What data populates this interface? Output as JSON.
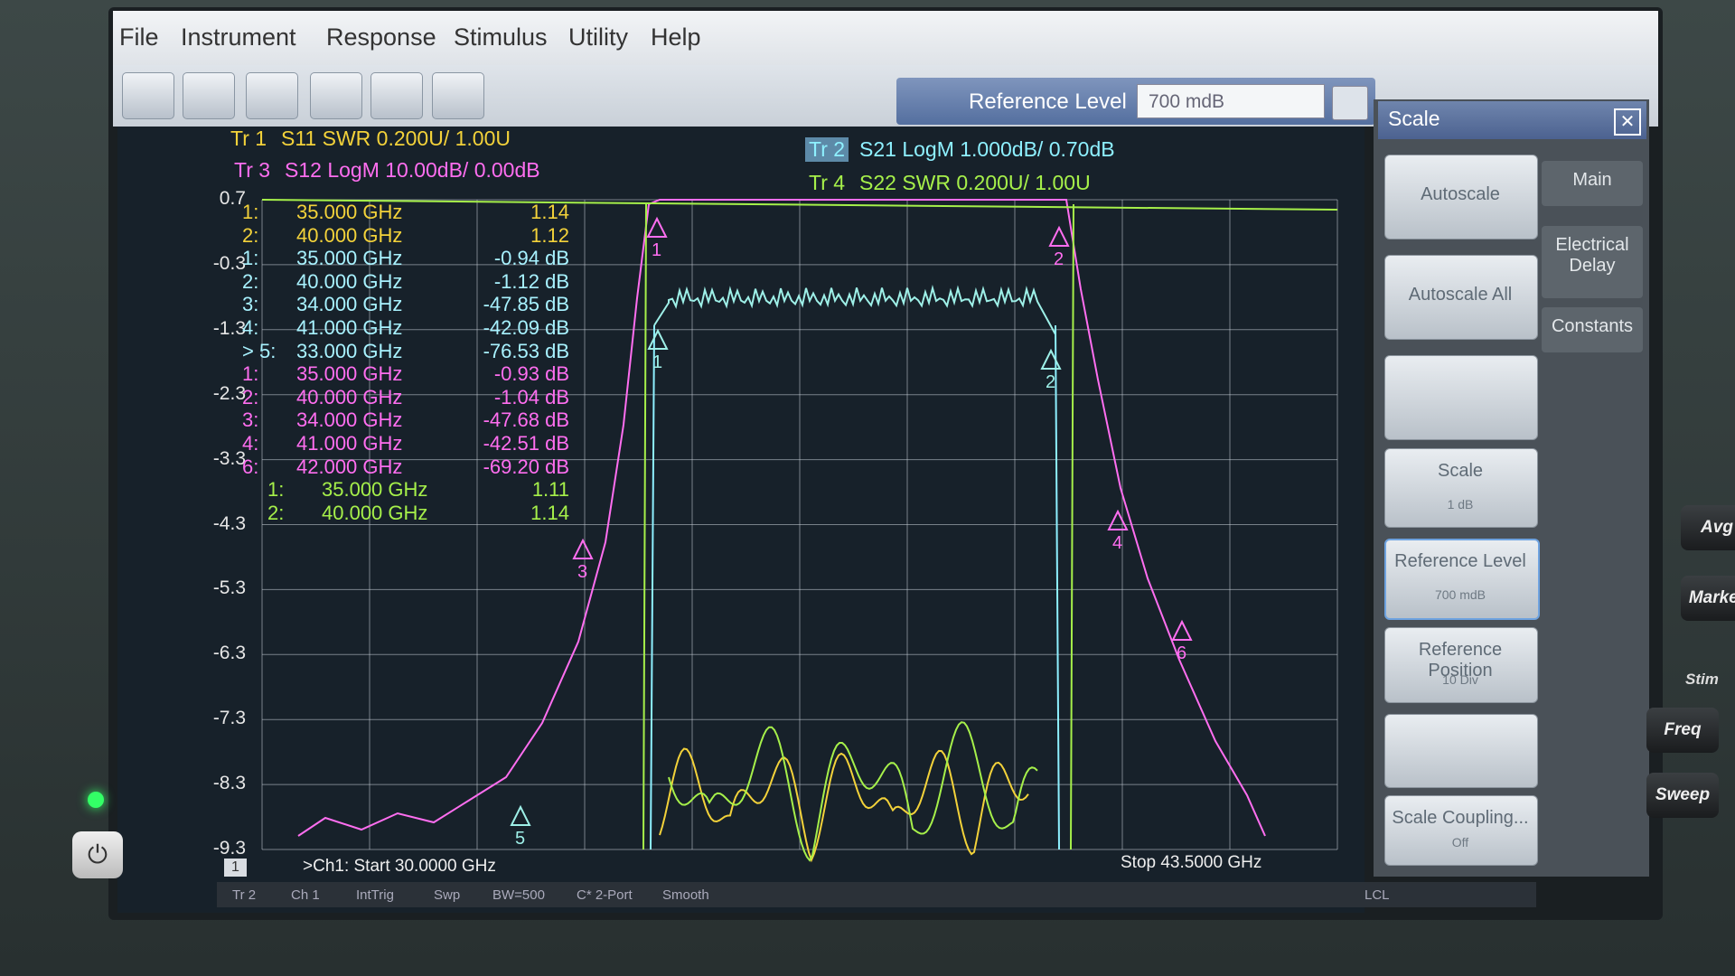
{
  "menu": [
    "File",
    "Instrument",
    "Response",
    "Stimulus",
    "Utility",
    "Help"
  ],
  "entry": {
    "label": "Reference Level",
    "value": "700 mdB"
  },
  "traces": [
    {
      "id": "Tr 1",
      "desc": "S11 SWR 0.200U/ 1.00U",
      "color": "#f3d23a"
    },
    {
      "id": "Tr 3",
      "desc": "S12 LogM 10.00dB/ 0.00dB",
      "color": "#ff6ef0"
    },
    {
      "id": "Tr 2",
      "desc": "S21 LogM 1.000dB/ 0.70dB",
      "color": "#8ef0ff"
    },
    {
      "id": "Tr 4",
      "desc": "S22 SWR 0.200U/ 1.00U",
      "color": "#a6f04a"
    }
  ],
  "y_axis_labels": [
    "0.7",
    "-0.3",
    "-1.3",
    "-2.3",
    "-3.3",
    "-4.3",
    "-5.3",
    "-6.3",
    "-7.3",
    "-8.3",
    "-9.3"
  ],
  "marker_groups": [
    {
      "color": "#f3d23a",
      "rows": [
        {
          "id": "1:",
          "freq": "35.000 GHz",
          "value": "1.14"
        },
        {
          "id": "2:",
          "freq": "40.000 GHz",
          "value": "1.12"
        }
      ]
    },
    {
      "color": "#a8f2ff",
      "rows": [
        {
          "id": "1:",
          "freq": "35.000 GHz",
          "value": "-0.94 dB"
        },
        {
          "id": "2:",
          "freq": "40.000 GHz",
          "value": "-1.12 dB"
        },
        {
          "id": "3:",
          "freq": "34.000 GHz",
          "value": "-47.85 dB"
        },
        {
          "id": "4:",
          "freq": "41.000 GHz",
          "value": "-42.09 dB"
        },
        {
          "id": "> 5:",
          "freq": "33.000 GHz",
          "value": "-76.53 dB"
        }
      ]
    },
    {
      "color": "#ff6ef0",
      "rows": [
        {
          "id": "1:",
          "freq": "35.000 GHz",
          "value": "-0.93 dB"
        },
        {
          "id": "2:",
          "freq": "40.000 GHz",
          "value": "-1.04 dB"
        },
        {
          "id": "3:",
          "freq": "34.000 GHz",
          "value": "-47.68 dB"
        },
        {
          "id": "4:",
          "freq": "41.000 GHz",
          "value": "-42.51 dB"
        },
        {
          "id": "6:",
          "freq": "42.000 GHz",
          "value": "-69.20 dB"
        }
      ]
    },
    {
      "color": "#a6f04a",
      "rows": [
        {
          "id": "1:",
          "freq": "35.000 GHz",
          "value": "1.11"
        },
        {
          "id": "2:",
          "freq": "40.000 GHz",
          "value": "1.14"
        }
      ]
    }
  ],
  "plot_markers": [
    "1",
    "2",
    "1",
    "2",
    "3",
    "4",
    "5",
    "6"
  ],
  "footer": {
    "channel": "1",
    "start": ">Ch1: Start 30.0000 GHz",
    "stop": "Stop 43.5000 GHz"
  },
  "status_bar": [
    "Tr 2",
    "Ch 1",
    "IntTrig",
    "Swp",
    "BW=500",
    "C* 2-Port",
    "Smooth",
    "LCL"
  ],
  "panel": {
    "title": "Scale",
    "buttons": [
      {
        "label": "Autoscale"
      },
      {
        "label": "Autoscale All"
      },
      {},
      {
        "label": "Scale",
        "value": "1 dB"
      },
      {
        "label": "Reference Level",
        "value": "700 mdB"
      },
      {
        "label": "Reference Position",
        "value": "10 Div"
      },
      {},
      {
        "label": "Scale Coupling...",
        "value": "Off"
      }
    ],
    "tabs": [
      "Main",
      "Electrical Delay",
      "Constants"
    ]
  },
  "hardware_keys": [
    "Avg",
    "Marker",
    "Stim",
    "Freq",
    "Sweep"
  ]
}
